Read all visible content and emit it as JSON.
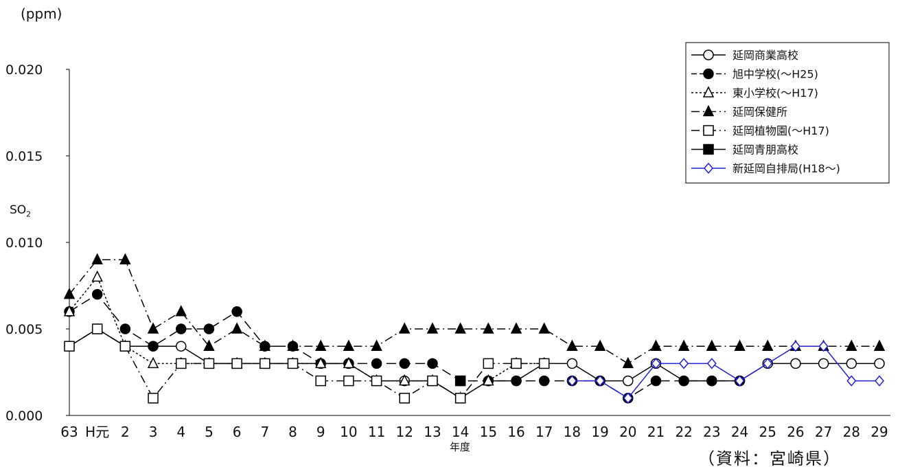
{
  "chart_data": {
    "type": "line",
    "unit_label": "(ppm)",
    "ylabel_main": "SO",
    "ylabel_sub": "2",
    "xlabel": "年度",
    "source": "（資料：宮崎県）",
    "ylim": [
      0,
      0.02
    ],
    "yticks": [
      "0.000",
      "0.005",
      "0.010",
      "0.015",
      "0.020"
    ],
    "categories": [
      "63",
      "H元",
      "2",
      "3",
      "4",
      "5",
      "6",
      "7",
      "8",
      "9",
      "10",
      "11",
      "12",
      "13",
      "14",
      "15",
      "16",
      "17",
      "18",
      "19",
      "20",
      "21",
      "22",
      "23",
      "24",
      "25",
      "26",
      "27",
      "28",
      "29"
    ],
    "legend_position": "top-right",
    "series": [
      {
        "name": "延岡商業高校",
        "marker": "circle-open",
        "line": "solid",
        "color": "#000000",
        "values": [
          0.004,
          0.005,
          0.004,
          0.004,
          0.004,
          0.003,
          0.003,
          0.003,
          0.003,
          0.003,
          0.003,
          0.002,
          0.002,
          0.002,
          0.001,
          0.002,
          0.002,
          0.003,
          0.003,
          0.002,
          0.002,
          0.003,
          0.002,
          0.002,
          0.002,
          0.003,
          0.003,
          0.003,
          0.003,
          0.003
        ]
      },
      {
        "name": "旭中学校(〜H25)",
        "marker": "circle-filled",
        "line": "dashed",
        "color": "#000000",
        "values": [
          0.006,
          0.007,
          0.005,
          0.004,
          0.005,
          0.005,
          0.006,
          0.004,
          0.004,
          0.003,
          0.003,
          0.003,
          0.003,
          0.003,
          0.002,
          0.002,
          0.002,
          0.002,
          0.002,
          0.002,
          0.001,
          0.002,
          0.002,
          0.002,
          0.002,
          null,
          null,
          null,
          null,
          null
        ]
      },
      {
        "name": "東小学校(〜H17)",
        "marker": "triangle-open",
        "line": "dotted",
        "color": "#000000",
        "values": [
          0.006,
          0.008,
          0.004,
          0.003,
          0.003,
          0.003,
          0.003,
          0.003,
          0.003,
          0.003,
          0.003,
          0.002,
          0.002,
          0.002,
          0.001,
          0.002,
          0.003,
          0.003,
          null,
          null,
          null,
          null,
          null,
          null,
          null,
          null,
          null,
          null,
          null,
          null
        ]
      },
      {
        "name": "延岡保健所",
        "marker": "triangle-filled",
        "line": "dash-dot",
        "color": "#000000",
        "values": [
          0.007,
          0.009,
          0.009,
          0.005,
          0.006,
          0.004,
          0.005,
          0.004,
          0.004,
          0.004,
          0.004,
          0.004,
          0.005,
          0.005,
          0.005,
          0.005,
          0.005,
          0.005,
          0.004,
          0.004,
          0.003,
          0.004,
          0.004,
          0.004,
          0.004,
          0.004,
          0.004,
          0.004,
          0.004,
          0.004
        ]
      },
      {
        "name": "延岡植物園(〜H17)",
        "marker": "square-open",
        "line": "dash-dot",
        "color": "#000000",
        "values": [
          0.004,
          0.005,
          0.004,
          0.001,
          0.003,
          0.003,
          0.003,
          0.003,
          0.003,
          0.002,
          0.002,
          0.002,
          0.001,
          0.002,
          0.001,
          0.003,
          0.003,
          0.003,
          null,
          null,
          null,
          null,
          null,
          null,
          null,
          null,
          null,
          null,
          null,
          null
        ]
      },
      {
        "name": "延岡青朋高校",
        "marker": "square-filled",
        "line": "solid",
        "color": "#000000",
        "values": [
          null,
          null,
          null,
          null,
          null,
          null,
          null,
          null,
          null,
          null,
          null,
          null,
          null,
          null,
          0.002,
          null,
          null,
          null,
          null,
          null,
          null,
          null,
          null,
          null,
          null,
          null,
          null,
          null,
          null,
          null
        ]
      },
      {
        "name": "新延岡自排局(H18〜)",
        "marker": "diamond-open",
        "line": "solid",
        "color": "#1f1fd6",
        "values": [
          null,
          null,
          null,
          null,
          null,
          null,
          null,
          null,
          null,
          null,
          null,
          null,
          null,
          null,
          null,
          null,
          null,
          null,
          0.002,
          0.002,
          0.001,
          0.003,
          0.003,
          0.003,
          0.002,
          0.003,
          0.004,
          0.004,
          0.002,
          0.002
        ]
      }
    ]
  }
}
